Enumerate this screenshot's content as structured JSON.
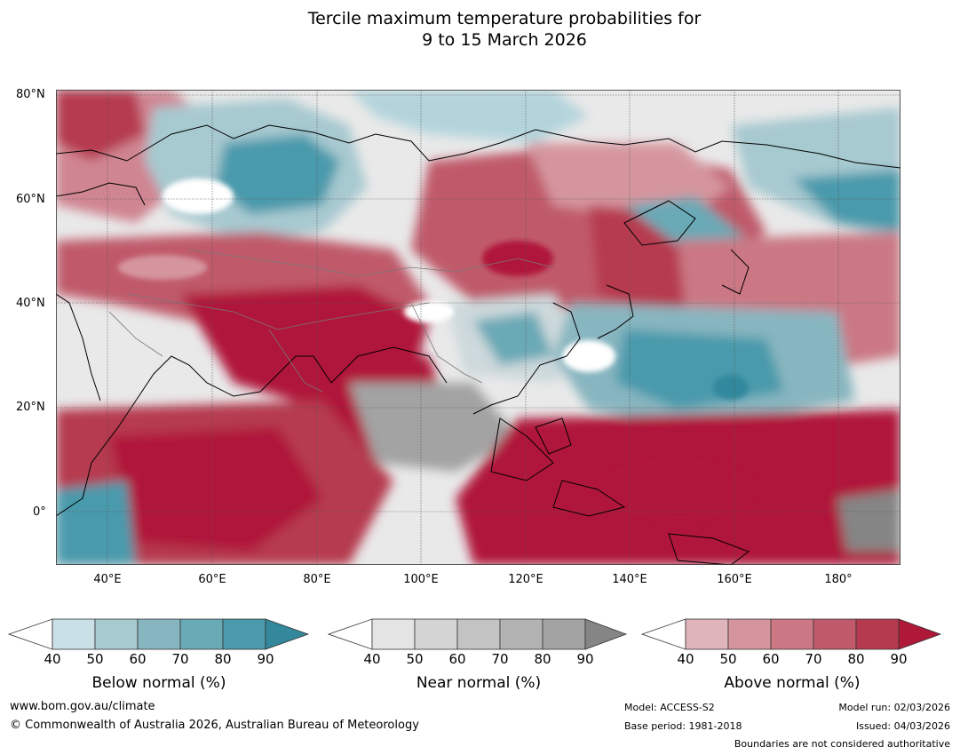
{
  "title": {
    "line1": "Tercile maximum temperature probabilities for",
    "line2": "9 to 15 March 2026"
  },
  "map": {
    "projection": "equirectangular",
    "lon_range_deg": [
      30,
      192
    ],
    "lat_range_deg": [
      -10,
      81
    ],
    "gridline_color": "#555555"
  },
  "axes": {
    "lat_labels": [
      "80°N",
      "60°N",
      "40°N",
      "20°N",
      "0°"
    ],
    "lon_labels": [
      "40°E",
      "60°E",
      "80°E",
      "100°E",
      "120°E",
      "140°E",
      "160°E",
      "180°"
    ]
  },
  "colorbars": [
    {
      "caption": "Below normal (%)",
      "ticks": [
        "40",
        "50",
        "60",
        "70",
        "80",
        "90"
      ],
      "colors": [
        "#ffffff",
        "#c9e0e6",
        "#a7c9d0",
        "#88b6c0",
        "#6aa9b6",
        "#4a9aac",
        "#33889c"
      ]
    },
    {
      "caption": "Near normal (%)",
      "ticks": [
        "40",
        "50",
        "60",
        "70",
        "80",
        "90"
      ],
      "colors": [
        "#ffffff",
        "#e4e4e4",
        "#d4d4d4",
        "#c3c3c3",
        "#b3b3b3",
        "#a3a3a3",
        "#858585"
      ]
    },
    {
      "caption": "Above normal (%)",
      "ticks": [
        "40",
        "50",
        "60",
        "70",
        "80",
        "90"
      ],
      "colors": [
        "#ffffff",
        "#dfb5bb",
        "#d5959e",
        "#cb7884",
        "#c05a6a",
        "#b63a4f",
        "#b0183a"
      ]
    }
  ],
  "footer": {
    "website": "www.bom.gov.au/climate",
    "copyright": "© Commonwealth of Australia 2026, Australian Bureau of Meteorology",
    "model": "Model: ACCESS-S2",
    "base_period": "Base period: 1981-2018",
    "model_run": "Model run: 02/03/2026",
    "issued": "Issued: 04/03/2026",
    "disclaimer": "Boundaries are not considered authoritative"
  }
}
